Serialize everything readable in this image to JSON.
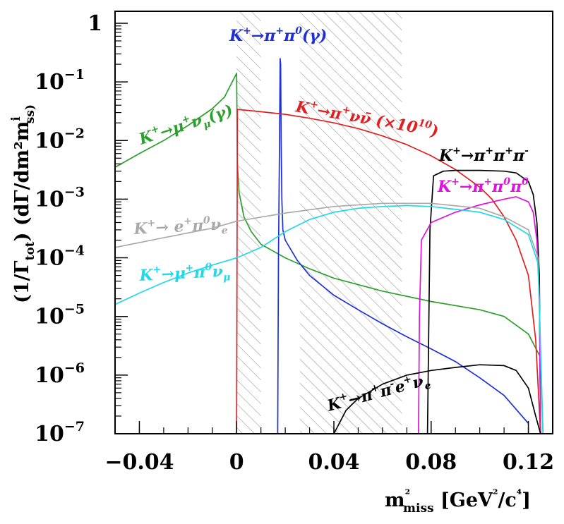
{
  "chart_data": {
    "type": "line",
    "title": "",
    "xlabel": "m²miss [GeV²/c⁴]",
    "ylabel": "(1/Γtot) (dΓ/dm²miss)",
    "xlim": [
      -0.05,
      0.13
    ],
    "ylim": [
      1e-07,
      1.6
    ],
    "yscale": "log",
    "xticks": [
      {
        "value": -0.04,
        "label": "−0.04"
      },
      {
        "value": 0,
        "label": "0"
      },
      {
        "value": 0.04,
        "label": "0.04"
      },
      {
        "value": 0.08,
        "label": "0.08"
      },
      {
        "value": 0.12,
        "label": "0.12"
      }
    ],
    "yticks": [
      {
        "value": 1e-07,
        "base": "10",
        "exp": "−7"
      },
      {
        "value": 1e-06,
        "base": "10",
        "exp": "−6"
      },
      {
        "value": 1e-05,
        "base": "10",
        "exp": "−5"
      },
      {
        "value": 0.0001,
        "base": "10",
        "exp": "−4"
      },
      {
        "value": 0.001,
        "base": "10",
        "exp": "−3"
      },
      {
        "value": 0.01,
        "base": "10",
        "exp": "−2"
      },
      {
        "value": 0.1,
        "base": "10",
        "exp": "−1"
      },
      {
        "value": 1,
        "base": "1",
        "exp": ""
      }
    ],
    "regions": [
      {
        "name": "signal-region-1",
        "x": [
          0.0,
          0.01
        ]
      },
      {
        "name": "signal-region-2",
        "x": [
          0.026,
          0.068
        ]
      }
    ],
    "series": [
      {
        "name": "K+ → μ+ ν_μ(γ)",
        "color": "#2ca02c",
        "x": [
          -0.05,
          -0.04,
          -0.03,
          -0.02,
          -0.01,
          -0.005,
          0,
          0.0003,
          0.001,
          0.003,
          0.006,
          0.01,
          0.02,
          0.03,
          0.04,
          0.06,
          0.08,
          0.1,
          0.11,
          0.12,
          0.125
        ],
        "y": [
          0.0035,
          0.006,
          0.01,
          0.018,
          0.035,
          0.055,
          0.14,
          0.004,
          0.0013,
          0.0005,
          0.00028,
          0.00017,
          0.0001,
          6.5e-05,
          4.5e-05,
          2.7e-05,
          1.8e-05,
          1.3e-05,
          1e-05,
          5e-06,
          2e-06
        ]
      },
      {
        "name": "K+ → π+ π0(γ)",
        "color": "#1f2fd8",
        "x": [
          0.0169,
          0.0172,
          0.0176,
          0.0179,
          0.0181,
          0.0183,
          0.0186,
          0.019,
          0.02,
          0.025,
          0.03,
          0.04,
          0.05,
          0.06,
          0.07,
          0.08,
          0.09,
          0.1,
          0.11,
          0.12
        ],
        "y": [
          1e-07,
          0.0001,
          0.005,
          0.25,
          0.2,
          0.01,
          0.001,
          0.0003,
          0.0002,
          9e-05,
          5e-05,
          2.3e-05,
          1.3e-05,
          7.5e-06,
          4.5e-06,
          2.8e-06,
          1.7e-06,
          9e-07,
          4.5e-07,
          1.5e-07
        ]
      },
      {
        "name": "K+ → π+ ν ν̄ (×10¹⁰)",
        "color": "#e02020",
        "x": [
          0,
          0.0003,
          0.01,
          0.02,
          0.03,
          0.04,
          0.05,
          0.06,
          0.07,
          0.08,
          0.09,
          0.1,
          0.105,
          0.11,
          0.115,
          0.12,
          0.123,
          0.125
        ],
        "y": [
          1e-07,
          0.034,
          0.031,
          0.028,
          0.024,
          0.02,
          0.016,
          0.012,
          0.0085,
          0.0055,
          0.0032,
          0.0016,
          0.001,
          0.0005,
          0.0002,
          5e-05,
          4e-06,
          1e-07
        ]
      },
      {
        "name": "K+ → π+ π+ π−",
        "color": "#000000",
        "x": [
          0.0785,
          0.0795,
          0.081,
          0.085,
          0.09,
          0.1,
          0.11,
          0.115,
          0.12,
          0.122,
          0.1235,
          0.1245,
          0.125
        ],
        "y": [
          1e-07,
          0.0003,
          0.0025,
          0.003,
          0.0031,
          0.0031,
          0.003,
          0.0028,
          0.002,
          0.0012,
          0.0004,
          5e-05,
          1e-07
        ]
      },
      {
        "name": "K+ → π+ π0 π0",
        "color": "#e010e0",
        "x": [
          0.0748,
          0.0752,
          0.076,
          0.08,
          0.09,
          0.1,
          0.11,
          0.115,
          0.12,
          0.122,
          0.1235,
          0.1245,
          0.125
        ],
        "y": [
          1e-07,
          1e-05,
          0.0002,
          0.0004,
          0.0006,
          0.0008,
          0.001,
          0.0011,
          0.0009,
          0.0006,
          0.0002,
          2e-05,
          1e-07
        ]
      },
      {
        "name": "K+ → e+ π0 ν_e",
        "color": "#aaaaaa",
        "x": [
          -0.05,
          -0.03,
          -0.01,
          0,
          0.02,
          0.04,
          0.06,
          0.08,
          0.1,
          0.11,
          0.12,
          0.124,
          0.126
        ],
        "y": [
          0.00015,
          0.00022,
          0.00032,
          0.00042,
          0.00058,
          0.00075,
          0.00085,
          0.00085,
          0.0007,
          0.0005,
          0.0003,
          0.0001,
          1e-07
        ]
      },
      {
        "name": "K+ → μ+ π0 ν_μ",
        "color": "#20d8e8",
        "x": [
          -0.05,
          -0.04,
          -0.03,
          -0.02,
          -0.01,
          0,
          0.01,
          0.02,
          0.03,
          0.04,
          0.05,
          0.06,
          0.07,
          0.08,
          0.1,
          0.11,
          0.12,
          0.124,
          0.126
        ],
        "y": [
          1.6e-05,
          2.5e-05,
          3.8e-05,
          5.5e-05,
          7.5e-05,
          0.0001,
          0.00015,
          0.00028,
          0.00045,
          0.0006,
          0.0007,
          0.00075,
          0.00078,
          0.00075,
          0.0006,
          0.00045,
          0.00025,
          8e-05,
          1e-07
        ]
      },
      {
        "name": "K+ → π+ π− e+ ν_e",
        "color": "#000000",
        "x": [
          0.04,
          0.045,
          0.05,
          0.06,
          0.07,
          0.08,
          0.09,
          0.1,
          0.11,
          0.115,
          0.12,
          0.123,
          0.125
        ],
        "y": [
          1e-07,
          2.5e-07,
          4e-07,
          7e-07,
          1e-06,
          1.2e-06,
          1.35e-06,
          1.5e-06,
          1.45e-06,
          1.2e-06,
          6e-07,
          2e-07,
          1e-07
        ]
      }
    ],
    "annotations": [
      {
        "id": "kmu2",
        "color": "#2ca02c",
        "pre": "K",
        "sup1": "+",
        "arrow": "→μ",
        "sup2": "+",
        "mid": "ν",
        "sub": "μ",
        "post": "(γ)"
      },
      {
        "id": "kpi2",
        "color": "#1f2fd8",
        "pre": "K",
        "sup1": "+",
        "arrow": "→π",
        "sup2": "+",
        "mid": "π",
        "sup3": "0",
        "post": "(γ)"
      },
      {
        "id": "pinunu",
        "color": "#e02020",
        "pre": "K",
        "sup1": "+",
        "arrow": "→π",
        "sup2": "+",
        "mid": "νν̄ (×10",
        "sup3": "10",
        "post": ")"
      },
      {
        "id": "k3pi",
        "color": "#000000",
        "pre": "K",
        "sup1": "+",
        "arrow": "→π",
        "sup2": "+",
        "mid": "π",
        "sup3": "+",
        "mid2": "π",
        "sup4": "-"
      },
      {
        "id": "k3pi0",
        "color": "#e010e0",
        "pre": "K",
        "sup1": "+",
        "arrow": "→π",
        "sup2": "+",
        "mid": "π",
        "sup3": "0",
        "mid2": "π",
        "sup4": "0"
      },
      {
        "id": "ke3",
        "color": "#aaaaaa",
        "pre": "K",
        "sup1": "+",
        "arrow": "→ e",
        "sup2": "+",
        "mid": "π",
        "sup3": "0",
        "mid2": "ν",
        "sub": "e"
      },
      {
        "id": "kmu3",
        "color": "#20d8e8",
        "pre": "K",
        "sup1": "+",
        "arrow": "→μ",
        "sup2": "+",
        "mid": "π",
        "sup3": "0",
        "mid2": "ν",
        "sub": "μ"
      },
      {
        "id": "ke4",
        "color": "#000000",
        "pre": "K",
        "sup1": "+",
        "arrow": "→π",
        "sup2": "+",
        "mid": "π",
        "sup3": "-",
        "mid2": "e",
        "sup4": "+",
        "mid3": "ν",
        "sub": "e"
      }
    ]
  }
}
